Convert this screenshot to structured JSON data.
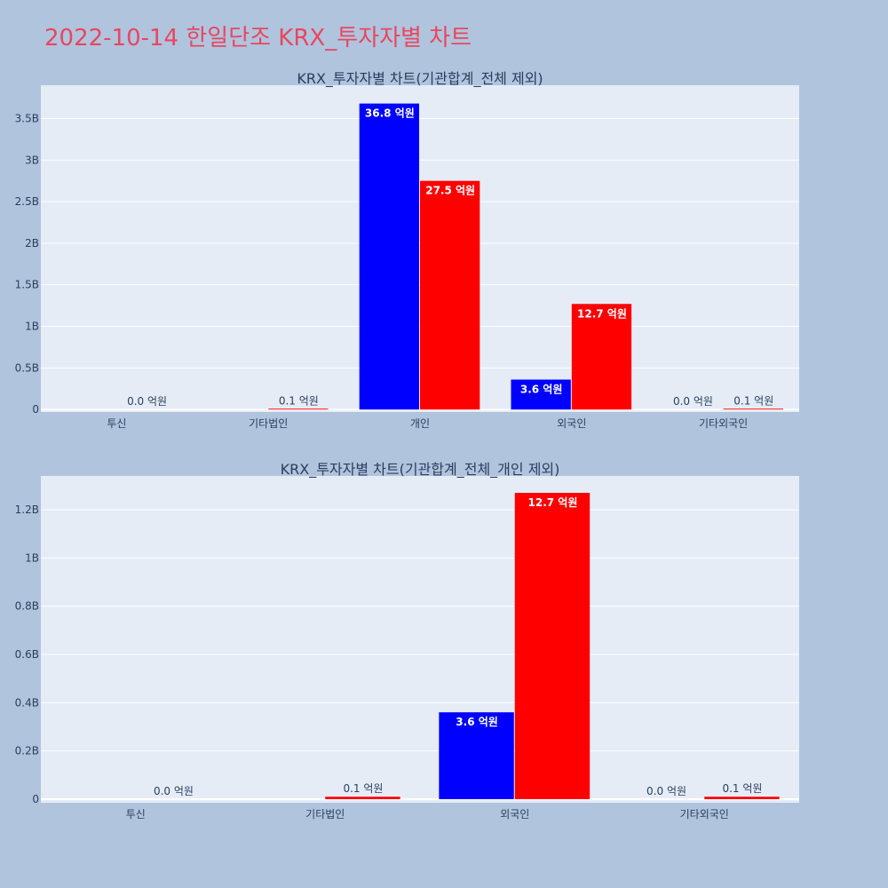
{
  "page": {
    "title": "2022-10-14 한일단조 KRX_투자자별 차트",
    "background": "#b0c4de",
    "title_color": "#e8475f",
    "plot_background": "#e5ecf6"
  },
  "chart_data": [
    {
      "type": "bar",
      "title": "KRX_투자자별 차트(기관합계_전체 제외)",
      "categories": [
        "투신",
        "기타법인",
        "개인",
        "외국인",
        "기타외국인"
      ],
      "series": [
        {
          "color": "#0000ff",
          "values": [
            0.0,
            0.0,
            3680000000,
            360000000,
            0.0
          ],
          "labels": [
            "",
            "",
            "36.8 억원",
            "3.6 억원",
            "0.0 억원"
          ]
        },
        {
          "color": "#ff0000",
          "values": [
            0.0,
            10000000,
            2750000000,
            1270000000,
            10000000
          ],
          "labels": [
            "0.0 억원",
            "0.1 억원",
            "27.5 억원",
            "12.7 억원",
            "0.1 억원"
          ]
        }
      ],
      "yticks": [
        0,
        500000000,
        1000000000,
        1500000000,
        2000000000,
        2500000000,
        3000000000,
        3500000000
      ],
      "ytick_labels": [
        "0",
        "0.5B",
        "1B",
        "1.5B",
        "2B",
        "2.5B",
        "3B",
        "3.5B"
      ],
      "ylim": [
        -30000000,
        3900000000
      ],
      "grid": true
    },
    {
      "type": "bar",
      "title": "KRX_투자자별 차트(기관합계_전체_개인 제외)",
      "categories": [
        "투신",
        "기타법인",
        "외국인",
        "기타외국인"
      ],
      "series": [
        {
          "color": "#0000ff",
          "values": [
            0.0,
            0.0,
            360000000,
            0.0
          ],
          "labels": [
            "",
            "",
            "3.6 억원",
            "0.0 억원"
          ]
        },
        {
          "color": "#ff0000",
          "values": [
            0.0,
            10000000,
            1270000000,
            10000000
          ],
          "labels": [
            "0.0 억원",
            "0.1 억원",
            "12.7 억원",
            "0.1 억원"
          ]
        }
      ],
      "yticks": [
        0,
        200000000,
        400000000,
        600000000,
        800000000,
        1000000000,
        1200000000
      ],
      "ytick_labels": [
        "0",
        "0.2B",
        "0.4B",
        "0.6B",
        "0.8B",
        "1B",
        "1.2B"
      ],
      "ylim": [
        -15000000,
        1340000000
      ],
      "grid": true
    }
  ]
}
